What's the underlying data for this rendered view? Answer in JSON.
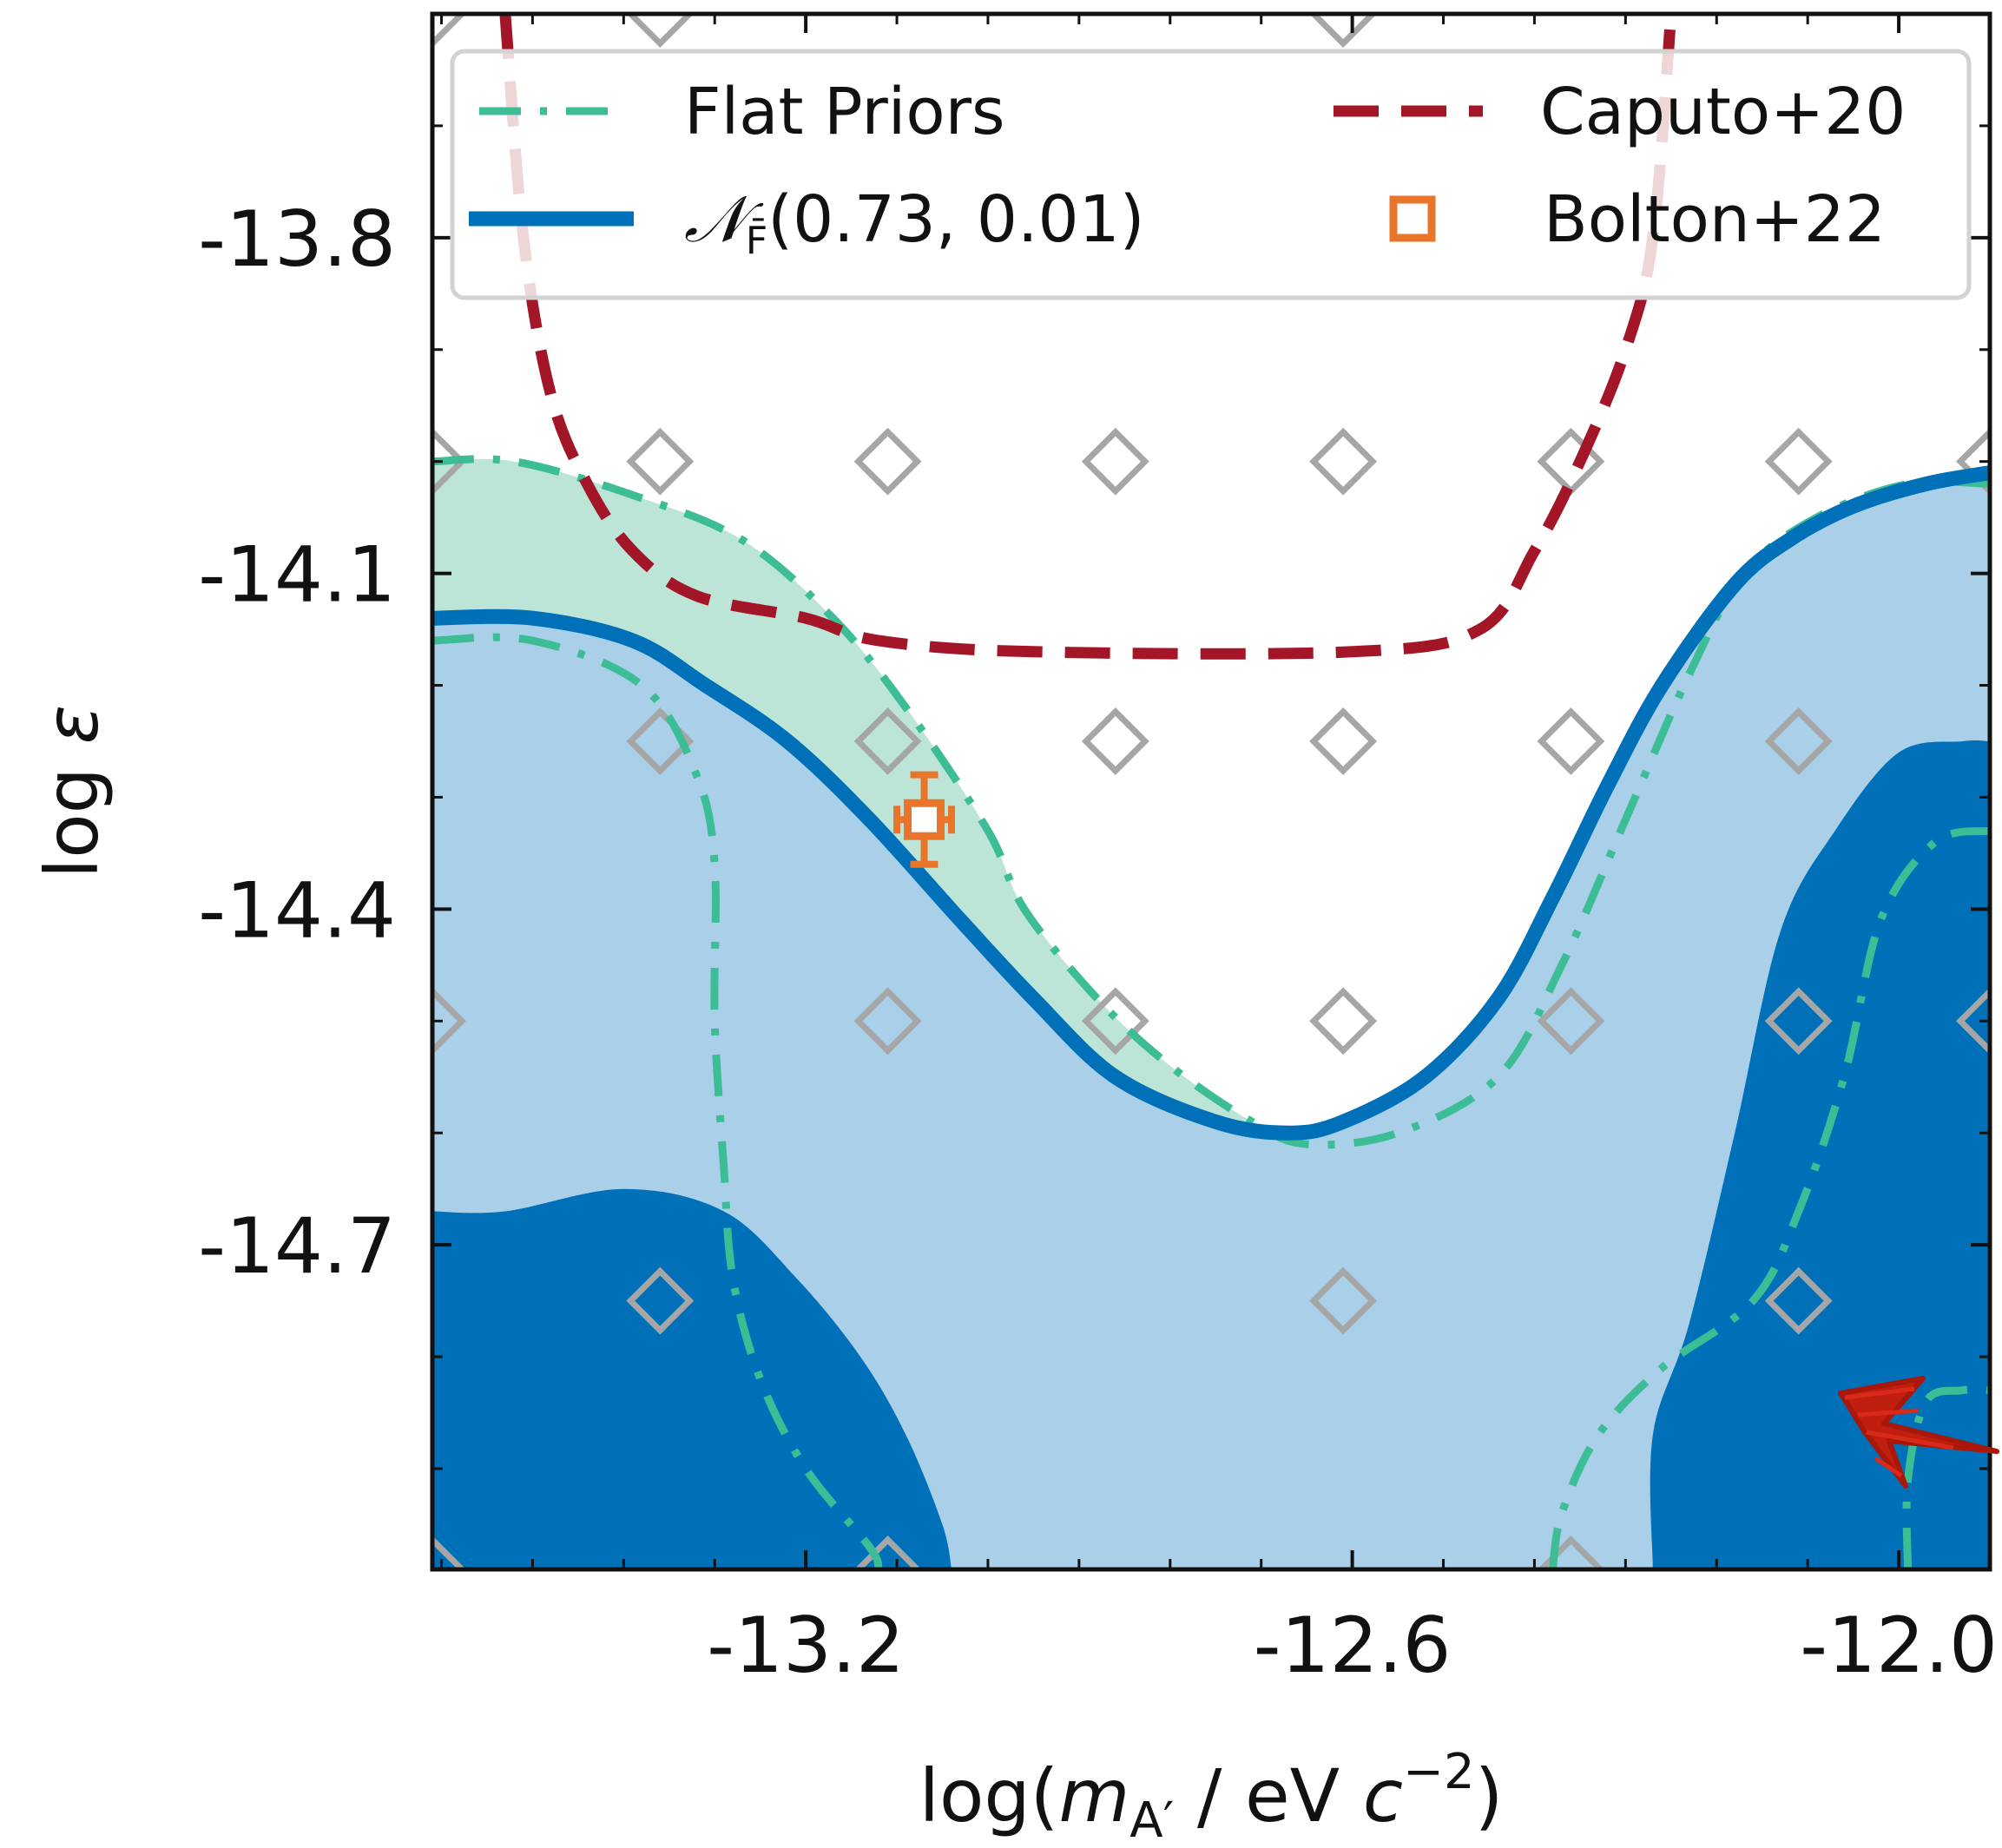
{
  "chart_data": {
    "type": "area",
    "title": "",
    "xlabel_parts": {
      "pre": "log(",
      "mvar": "m",
      "msub": "A′",
      "mid": " / eV ",
      "cvar": "c",
      "exp": "−2",
      "post": ")"
    },
    "ylabel_parts": {
      "pre": "log ",
      "var": "ε"
    },
    "xlim": [
      -13.61,
      -11.9
    ],
    "ylim": [
      -14.99,
      -13.6
    ],
    "xticks": [
      -13.2,
      -12.6,
      -12.0
    ],
    "xtick_labels": [
      "-13.2",
      "-12.6",
      "-12.0"
    ],
    "yticks": [
      -13.8,
      -14.1,
      -14.4,
      -14.7
    ],
    "ytick_labels": [
      "-13.8",
      "-14.1",
      "-14.4",
      "-14.7"
    ],
    "minor_tick_step": 0.1,
    "grid": false,
    "legend_position": "top",
    "legend": [
      {
        "label": "Flat Priors",
        "style": "dash-dot",
        "color": "#3dbd96"
      },
      {
        "label": "Caputo+20",
        "style": "dashed",
        "color": "#a31628"
      },
      {
        "label_parts": {
          "main": "𝒩",
          "sub": "F̄",
          "rest": "(0.73, 0.01)"
        },
        "style": "solid",
        "color": "#0071b8"
      },
      {
        "label": "Bolton+22",
        "style": "open-square",
        "color": "#e8752a"
      }
    ],
    "colors": {
      "dark_region": "#0071b8",
      "light_region": "#a9d0e8",
      "flat_region": "#bce5d8",
      "flat_line": "#3dbd96",
      "caputo": "#a31628",
      "bolton": "#e8752a",
      "grid_marker": "#a6a6a6"
    },
    "series": [
      {
        "name": "Flat Priors",
        "role": "outer contour (dash-dot) and filled region",
        "points": [
          [
            -13.61,
            -14.0
          ],
          [
            -13.52,
            -14.0
          ],
          [
            -13.39,
            -14.03
          ],
          [
            -13.27,
            -14.07
          ],
          [
            -13.17,
            -14.14
          ],
          [
            -13.09,
            -14.22
          ],
          [
            -13.0,
            -14.33
          ],
          [
            -12.96,
            -14.4
          ],
          [
            -12.88,
            -14.48
          ],
          [
            -12.8,
            -14.54
          ],
          [
            -12.71,
            -14.59
          ],
          [
            -12.65,
            -14.61
          ],
          [
            -12.55,
            -14.6
          ],
          [
            -12.44,
            -14.55
          ],
          [
            -12.37,
            -14.45
          ],
          [
            -12.3,
            -14.32
          ],
          [
            -12.23,
            -14.19
          ],
          [
            -12.17,
            -14.1
          ],
          [
            -12.09,
            -14.05
          ],
          [
            -11.99,
            -14.02
          ],
          [
            -11.9,
            -14.02
          ]
        ]
      },
      {
        "name": "Flat Priors",
        "role": "inner contour, left",
        "points": [
          [
            -13.61,
            -14.16
          ],
          [
            -13.5,
            -14.16
          ],
          [
            -13.38,
            -14.2
          ],
          [
            -13.32,
            -14.28
          ],
          [
            -13.3,
            -14.36
          ],
          [
            -13.3,
            -14.5
          ],
          [
            -13.29,
            -14.63
          ],
          [
            -13.28,
            -14.73
          ],
          [
            -13.25,
            -14.82
          ],
          [
            -13.2,
            -14.9
          ],
          [
            -13.13,
            -14.97
          ],
          [
            -13.12,
            -14.99
          ]
        ]
      },
      {
        "name": "Flat Priors",
        "role": "inner contour, right",
        "points": [
          [
            -12.38,
            -14.99
          ],
          [
            -12.37,
            -14.94
          ],
          [
            -12.33,
            -14.87
          ],
          [
            -12.26,
            -14.81
          ],
          [
            -12.16,
            -14.75
          ],
          [
            -12.11,
            -14.67
          ],
          [
            -12.06,
            -14.55
          ],
          [
            -12.02,
            -14.41
          ],
          [
            -11.96,
            -14.34
          ],
          [
            -11.9,
            -14.33
          ]
        ]
      },
      {
        "name": "Flat Priors",
        "role": "inner contour, bottom right",
        "points": [
          [
            -11.99,
            -14.99
          ],
          [
            -11.99,
            -14.91
          ],
          [
            -11.97,
            -14.84
          ],
          [
            -11.93,
            -14.83
          ],
          [
            -11.9,
            -14.83
          ]
        ]
      },
      {
        "name": "𝒩F̄(0.73, 0.01)",
        "role": "outer contour (solid) and light filled region",
        "points": [
          [
            -13.61,
            -14.14
          ],
          [
            -13.5,
            -14.14
          ],
          [
            -13.39,
            -14.16
          ],
          [
            -13.31,
            -14.2
          ],
          [
            -13.22,
            -14.25
          ],
          [
            -13.13,
            -14.32
          ],
          [
            -13.03,
            -14.41
          ],
          [
            -12.95,
            -14.48
          ],
          [
            -12.86,
            -14.55
          ],
          [
            -12.75,
            -14.59
          ],
          [
            -12.67,
            -14.6
          ],
          [
            -12.61,
            -14.59
          ],
          [
            -12.52,
            -14.55
          ],
          [
            -12.44,
            -14.48
          ],
          [
            -12.38,
            -14.39
          ],
          [
            -12.32,
            -14.29
          ],
          [
            -12.26,
            -14.2
          ],
          [
            -12.18,
            -14.11
          ],
          [
            -12.12,
            -14.07
          ],
          [
            -12.05,
            -14.04
          ],
          [
            -11.97,
            -14.02
          ],
          [
            -11.9,
            -14.01
          ]
        ]
      },
      {
        "name": "𝒩F̄(0.73, 0.01)",
        "role": "dark filled region, left",
        "points": [
          [
            -13.61,
            -14.67
          ],
          [
            -13.53,
            -14.67
          ],
          [
            -13.4,
            -14.65
          ],
          [
            -13.29,
            -14.67
          ],
          [
            -13.21,
            -14.73
          ],
          [
            -13.14,
            -14.8
          ],
          [
            -13.09,
            -14.87
          ],
          [
            -13.05,
            -14.95
          ],
          [
            -13.04,
            -14.99
          ]
        ]
      },
      {
        "name": "𝒩F̄(0.73, 0.01)",
        "role": "dark filled region, right",
        "points": [
          [
            -12.27,
            -14.99
          ],
          [
            -12.27,
            -14.87
          ],
          [
            -12.23,
            -14.77
          ],
          [
            -12.18,
            -14.6
          ],
          [
            -12.13,
            -14.42
          ],
          [
            -12.07,
            -14.33
          ],
          [
            -12.0,
            -14.26
          ],
          [
            -11.93,
            -14.25
          ],
          [
            -11.9,
            -14.25
          ]
        ]
      },
      {
        "name": "Caputo+20",
        "role": "dashed boundary",
        "points": [
          [
            -13.53,
            -13.6
          ],
          [
            -13.51,
            -13.8
          ],
          [
            -13.48,
            -13.94
          ],
          [
            -13.44,
            -14.02
          ],
          [
            -13.39,
            -14.08
          ],
          [
            -13.32,
            -14.12
          ],
          [
            -13.2,
            -14.14
          ],
          [
            -13.12,
            -14.16
          ],
          [
            -12.95,
            -14.17
          ],
          [
            -12.6,
            -14.17
          ],
          [
            -12.46,
            -14.15
          ],
          [
            -12.4,
            -14.08
          ],
          [
            -12.35,
            -14.0
          ],
          [
            -12.3,
            -13.9
          ],
          [
            -12.27,
            -13.8
          ],
          [
            -12.25,
            -13.6
          ]
        ]
      }
    ],
    "bolton_point": {
      "x": -13.07,
      "y": -14.32,
      "yerr": [
        0.04,
        0.04
      ],
      "xerr": [
        0.03,
        0.03
      ]
    },
    "grid_markers": [
      [
        -13.61,
        -13.6
      ],
      [
        -13.36,
        -13.6
      ],
      [
        -12.61,
        -13.6
      ],
      [
        -13.61,
        -14.0
      ],
      [
        -13.36,
        -14.0
      ],
      [
        -13.11,
        -14.0
      ],
      [
        -12.86,
        -14.0
      ],
      [
        -12.61,
        -14.0
      ],
      [
        -12.36,
        -14.0
      ],
      [
        -12.11,
        -14.0
      ],
      [
        -11.9,
        -14.0
      ],
      [
        -13.36,
        -14.25
      ],
      [
        -13.11,
        -14.25
      ],
      [
        -12.86,
        -14.25
      ],
      [
        -12.61,
        -14.25
      ],
      [
        -12.36,
        -14.25
      ],
      [
        -12.11,
        -14.25
      ],
      [
        -13.61,
        -14.5
      ],
      [
        -13.11,
        -14.5
      ],
      [
        -12.86,
        -14.5
      ],
      [
        -12.61,
        -14.5
      ],
      [
        -12.36,
        -14.5
      ],
      [
        -12.11,
        -14.5
      ],
      [
        -11.9,
        -14.5
      ],
      [
        -13.36,
        -14.75
      ],
      [
        -12.61,
        -14.75
      ],
      [
        -12.11,
        -14.75
      ],
      [
        -13.61,
        -14.99
      ],
      [
        -13.11,
        -14.99
      ],
      [
        -12.36,
        -14.99
      ]
    ]
  }
}
